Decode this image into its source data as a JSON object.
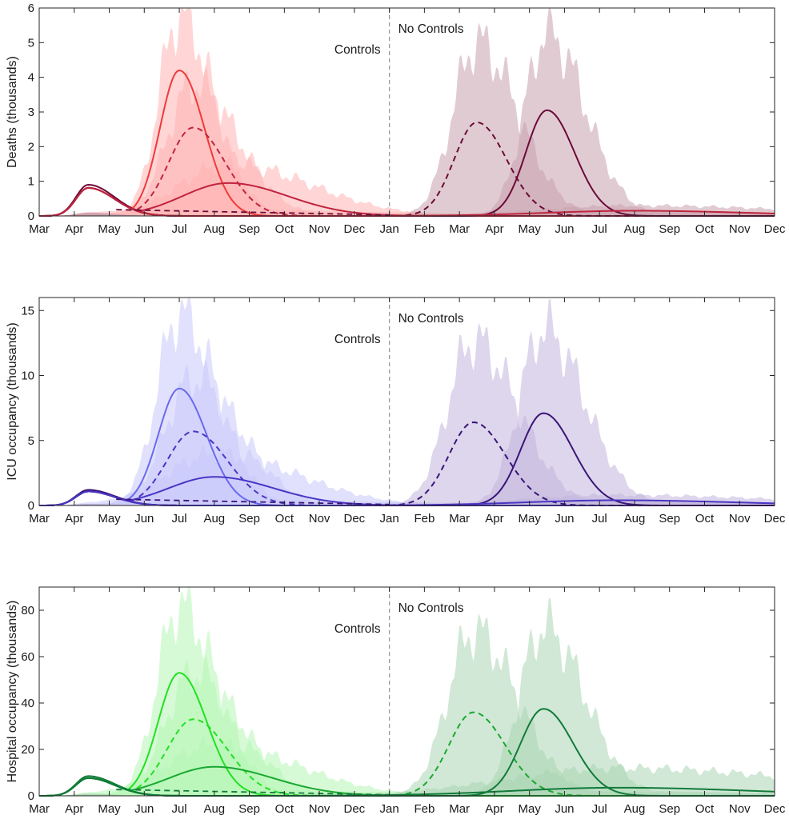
{
  "chart_data": [
    {
      "type": "line",
      "ylabel": "Deaths (thousands)",
      "ylim": [
        0,
        6
      ],
      "yticks": [
        0,
        1,
        2,
        3,
        4,
        5,
        6
      ],
      "x_tick_labels": [
        "Mar",
        "Apr",
        "May",
        "Jun",
        "Jul",
        "Aug",
        "Sep",
        "Oct",
        "Nov",
        "Dec",
        "Jan",
        "Feb",
        "Mar",
        "Apr",
        "May",
        "Jun",
        "Jul",
        "Aug",
        "Sep",
        "Oct",
        "Nov",
        "Dec"
      ],
      "divider_label_left": "Controls",
      "divider_label_right": "No Controls",
      "grid": false,
      "colors": {
        "bright": "#f03a3a",
        "mid": "#c0243e",
        "dark": "#6b0a38",
        "band_bright": "#ffb3b3",
        "band_dark": "#c9a0ad"
      },
      "initial_wave": {
        "peak_month": 1.4,
        "peak": 0.9
      },
      "series": [
        {
          "style": "solid",
          "color_key": "bright",
          "peak_month": 4.0,
          "peak": 4.2,
          "width": 0.55,
          "band_peak": 5.8
        },
        {
          "style": "dashed",
          "color_key": "mid",
          "peak_month": 4.4,
          "peak": 2.55,
          "width": 0.7,
          "band_peak": 3.8
        },
        {
          "style": "solid",
          "color_key": "mid",
          "peak_month": 5.4,
          "peak": 0.95,
          "width": 1.3,
          "band_peak": 1.5
        },
        {
          "style": "dashed",
          "color_key": "dark",
          "peak_month": 12.5,
          "peak": 2.7,
          "width": 0.65,
          "band_peak": 5.0
        },
        {
          "style": "solid",
          "color_key": "dark",
          "peak_month": 14.5,
          "peak": 3.05,
          "width": 0.6,
          "band_peak": 5.3
        },
        {
          "style": "solid",
          "color_key": "mid",
          "peak_month": 17.0,
          "peak": 0.15,
          "width": 2.5,
          "band_peak": 0.3
        }
      ]
    },
    {
      "type": "line",
      "ylabel": "ICU occupancy (thousands)",
      "ylim": [
        0,
        16
      ],
      "yticks": [
        0,
        5,
        10,
        15
      ],
      "x_tick_labels": [
        "Mar",
        "Apr",
        "May",
        "Jun",
        "Jul",
        "Aug",
        "Sep",
        "Oct",
        "Nov",
        "Dec",
        "Jan",
        "Feb",
        "Mar",
        "Apr",
        "May",
        "Jun",
        "Jul",
        "Aug",
        "Sep",
        "Oct",
        "Nov",
        "Dec"
      ],
      "divider_label_left": "Controls",
      "divider_label_right": "No Controls",
      "grid": false,
      "colors": {
        "bright": "#6a6aee",
        "mid": "#4a36c4",
        "dark": "#3a1478",
        "band_bright": "#c9c9fb",
        "band_dark": "#c1b4dd"
      },
      "initial_wave": {
        "peak_month": 1.4,
        "peak": 1.2
      },
      "series": [
        {
          "style": "solid",
          "color_key": "bright",
          "peak_month": 4.0,
          "peak": 9.0,
          "width": 0.6,
          "band_peak": 14.8
        },
        {
          "style": "dashed",
          "color_key": "mid",
          "peak_month": 4.4,
          "peak": 5.7,
          "width": 0.75,
          "band_peak": 9.8
        },
        {
          "style": "solid",
          "color_key": "mid",
          "peak_month": 5.0,
          "peak": 2.2,
          "width": 1.3,
          "band_peak": 4.0
        },
        {
          "style": "dashed",
          "color_key": "dark",
          "peak_month": 12.4,
          "peak": 6.4,
          "width": 0.7,
          "band_peak": 12.7
        },
        {
          "style": "solid",
          "color_key": "dark",
          "peak_month": 14.4,
          "peak": 7.1,
          "width": 0.65,
          "band_peak": 13.6
        },
        {
          "style": "solid",
          "color_key": "mid",
          "peak_month": 16.5,
          "peak": 0.4,
          "width": 2.6,
          "band_peak": 0.8
        }
      ]
    },
    {
      "type": "line",
      "ylabel": "Hospital occupancy (thousands)",
      "ylim": [
        0,
        90
      ],
      "yticks": [
        0,
        20,
        40,
        60,
        80
      ],
      "x_tick_labels": [
        "Mar",
        "Apr",
        "May",
        "Jun",
        "Jul",
        "Aug",
        "Sep",
        "Oct",
        "Nov",
        "Dec",
        "Jan",
        "Feb",
        "Mar",
        "Apr",
        "May",
        "Jun",
        "Jul",
        "Aug",
        "Sep",
        "Oct",
        "Nov",
        "Dec"
      ],
      "divider_label_left": "Controls",
      "divider_label_right": "No Controls",
      "grid": false,
      "colors": {
        "bright": "#22e022",
        "mid": "#1aa830",
        "dark": "#117a3a",
        "band_bright": "#b4f5b4",
        "band_dark": "#a9d6b3"
      },
      "initial_wave": {
        "peak_month": 1.4,
        "peak": 8.5
      },
      "series": [
        {
          "style": "solid",
          "color_key": "bright",
          "peak_month": 4.0,
          "peak": 53.0,
          "width": 0.6,
          "band_peak": 82.0
        },
        {
          "style": "dashed",
          "color_key": "bright",
          "peak_month": 4.4,
          "peak": 33.0,
          "width": 0.75,
          "band_peak": 53.0
        },
        {
          "style": "solid",
          "color_key": "mid",
          "peak_month": 5.0,
          "peak": 12.5,
          "width": 1.3,
          "band_peak": 22.0
        },
        {
          "style": "dashed",
          "color_key": "mid",
          "peak_month": 12.4,
          "peak": 36.0,
          "width": 0.7,
          "band_peak": 71.0
        },
        {
          "style": "solid",
          "color_key": "dark",
          "peak_month": 14.4,
          "peak": 37.5,
          "width": 0.65,
          "band_peak": 73.0
        },
        {
          "style": "solid",
          "color_key": "dark",
          "peak_month": 16.5,
          "peak": 3.5,
          "width": 3.0,
          "band_peak": 12.0
        }
      ]
    }
  ]
}
